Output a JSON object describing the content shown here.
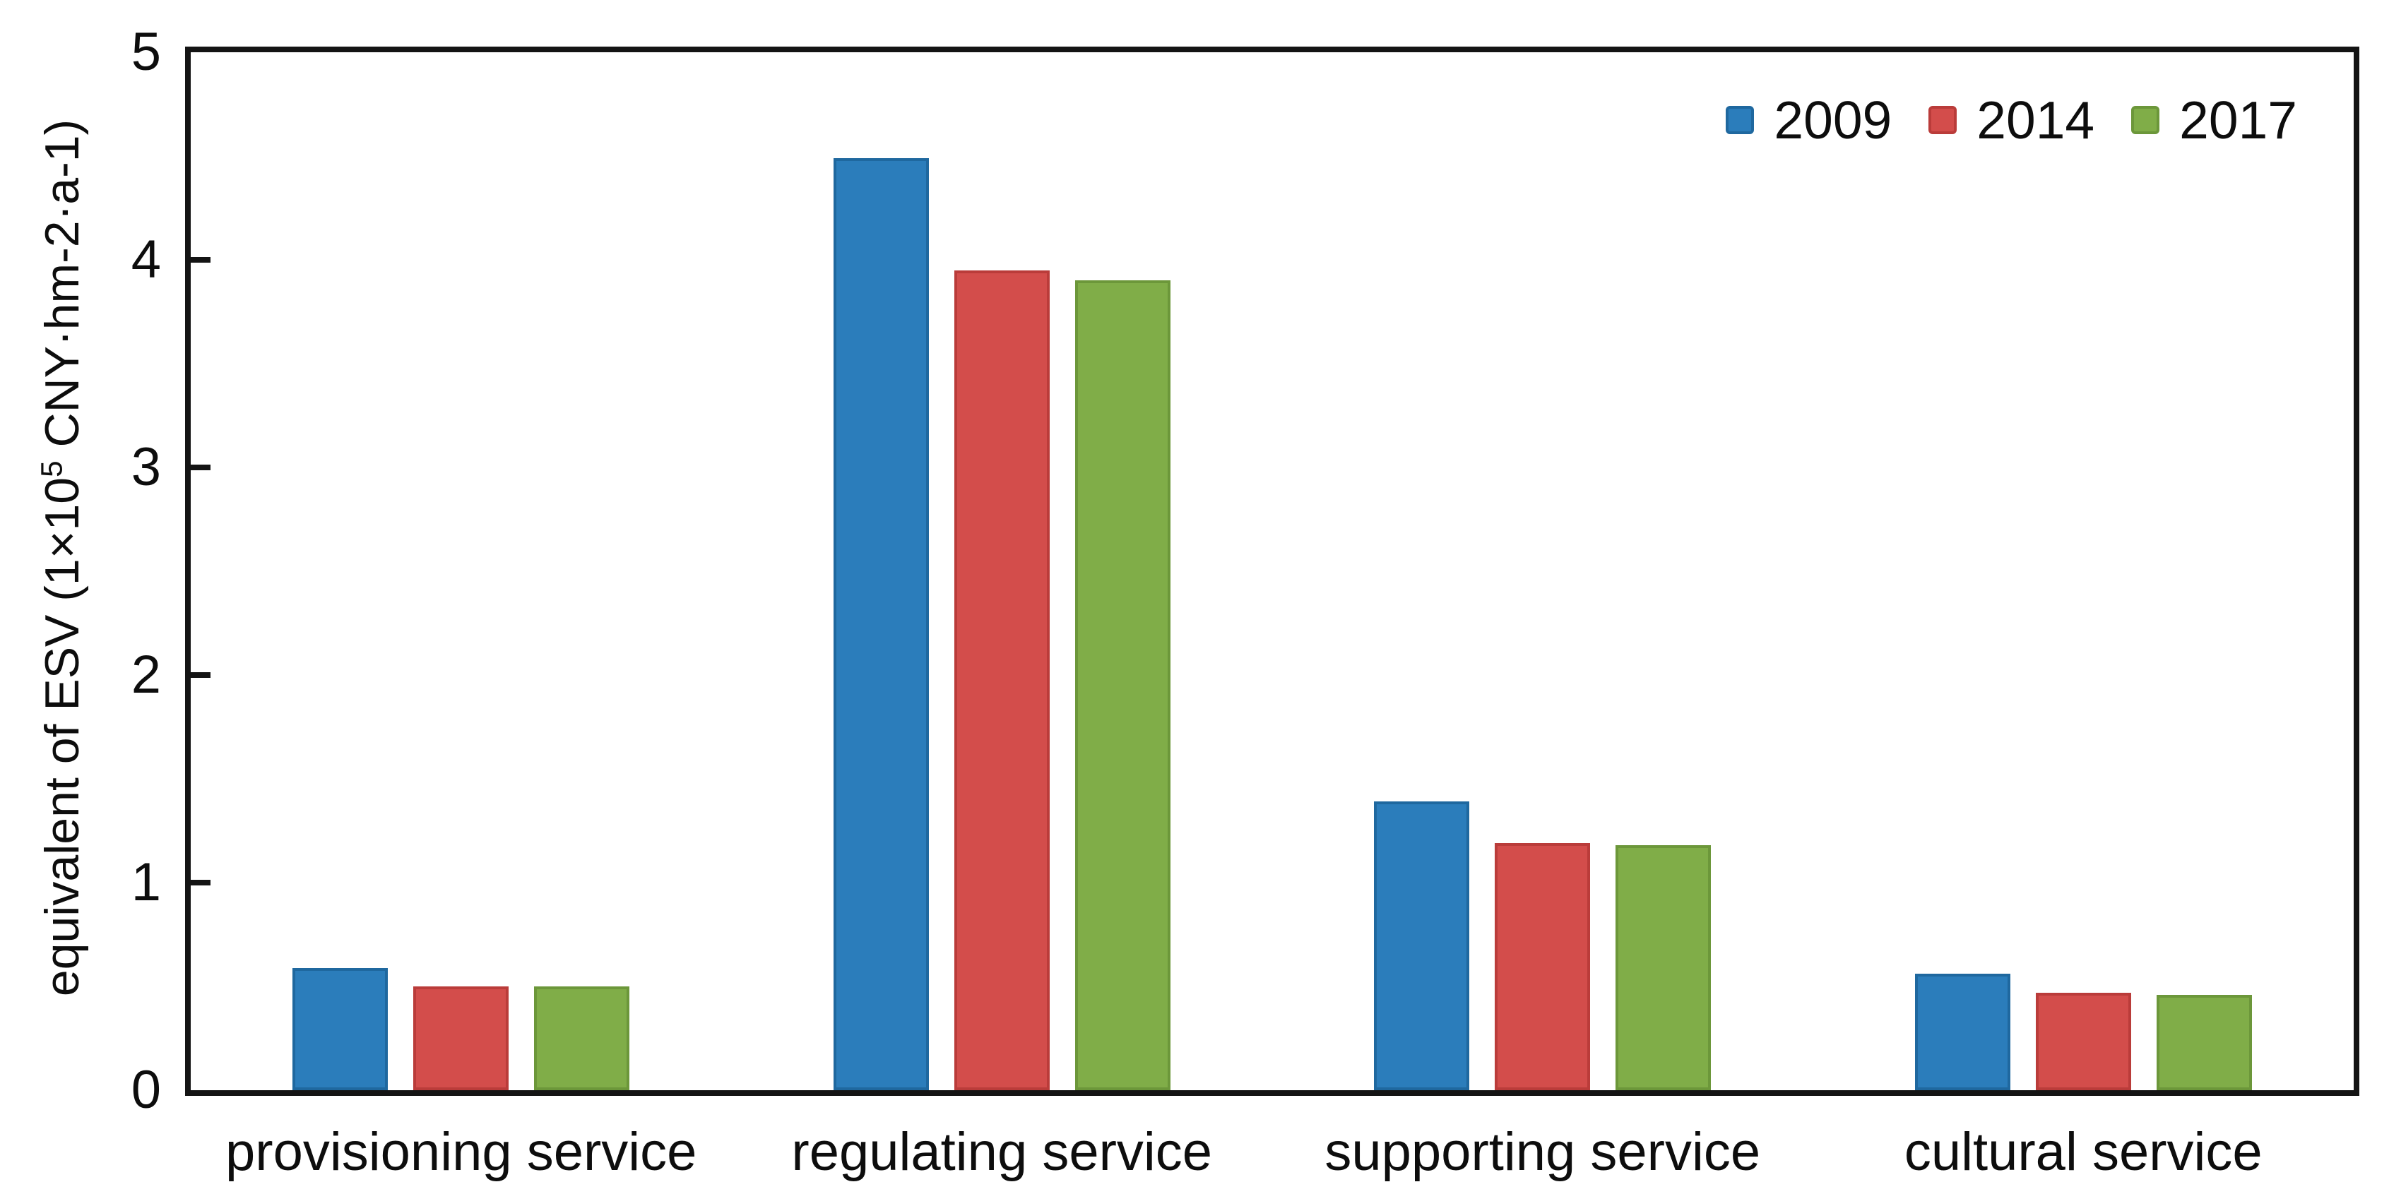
{
  "ylabel_parts": {
    "pre": "equivalent of ESV (1×10",
    "sup": "5",
    "post": " CNY·hm-2·a-1)"
  },
  "axis_color": "#141414",
  "background_color": "#ffffff",
  "chart_data": {
    "type": "bar",
    "title": "",
    "xlabel": "",
    "ylabel": "equivalent of ESV (1×10⁵ CNY·hm-2·a-1)",
    "categories": [
      "provisioning service",
      "regulating service",
      "supporting service",
      "cultural service"
    ],
    "series": [
      {
        "name": "2009",
        "color": "#2b7dbb",
        "edge_color": "#1f689f",
        "values": [
          0.59,
          4.49,
          1.39,
          0.56
        ]
      },
      {
        "name": "2014",
        "color": "#d34d4b",
        "edge_color": "#ba3c3a",
        "values": [
          0.5,
          3.95,
          1.19,
          0.47
        ]
      },
      {
        "name": "2017",
        "color": "#80ad48",
        "edge_color": "#6c973a",
        "values": [
          0.5,
          3.9,
          1.18,
          0.46
        ]
      }
    ],
    "ylim": [
      0,
      5
    ],
    "y_ticks": [
      0,
      1,
      2,
      3,
      4,
      5
    ],
    "grid": false,
    "legend_position": "top-right"
  }
}
